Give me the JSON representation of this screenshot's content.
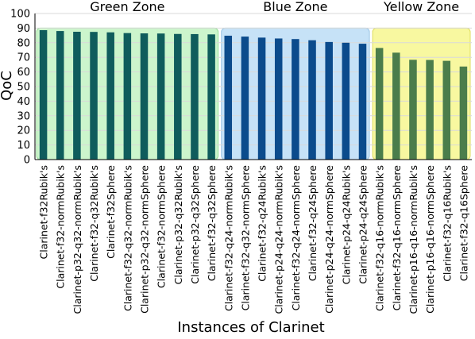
{
  "chart_data": {
    "type": "bar",
    "xlabel": "Instances of Clarinet",
    "ylabel": "QoC",
    "ylim": [
      0,
      100
    ],
    "yticks": [
      0,
      10,
      20,
      30,
      40,
      50,
      60,
      70,
      80,
      90,
      100
    ],
    "grid": true,
    "zones": [
      {
        "name": "Green Zone",
        "start": 0,
        "end": 10,
        "fill": "#ccf5cc",
        "stroke": "#99dd99"
      },
      {
        "name": "Blue Zone",
        "start": 11,
        "end": 19,
        "fill": "#c6e2f7",
        "stroke": "#9cc6e6"
      },
      {
        "name": "Yellow Zone",
        "start": 20,
        "end": 25,
        "fill": "#f8f8a0",
        "stroke": "#dede60"
      }
    ],
    "categories": [
      "Clarinet-f32Rubik's",
      "Clarinet-f32-normRubik's",
      "Clarinet-p32-q32-normRubik's",
      "Clarinet-f32-q32Rubik's",
      "Clarinet-f32Sphere",
      "Clarinet-f32-q32-normRubik's",
      "Clarinet-p32-q32-normSphere",
      "Clarinet-f32-normSphere",
      "Clarinet-p32-q32Rubik's",
      "Clarinet-p32-q32Sphere",
      "Clarinet-f32-q32Sphere",
      "Clarinet-f32-q24-normRubik's",
      "Clarinet-f32-q32-normSphere",
      "Clarinet-f32-q24Rubik's",
      "Clarinet-p24-q24-normRubik's",
      "Clarinet-f32-q24-normSphere",
      "Clarinet-f32-q24Sphere",
      "Clarinet-p24-q24-normSphere",
      "Clarinet-p24-q24Rubik's",
      "Clarinet-p24-q24Sphere",
      "Clarinet-f32-q16-normRubik's",
      "Clarinet-f32-q16-normSphere",
      "Clarinet-p16-q16-normRubik's",
      "Clarinet-p16-q16-normSphere",
      "Clarinet-f32-q16Rubik's",
      "Clarinet-f32-q16Sphere"
    ],
    "values": [
      88.6,
      88.0,
      87.5,
      87.4,
      87.1,
      86.6,
      86.4,
      86.3,
      86.0,
      85.9,
      85.7,
      84.8,
      84.2,
      83.5,
      82.9,
      82.5,
      81.7,
      80.5,
      80.0,
      79.3,
      76.4,
      73.2,
      68.3,
      68.2,
      67.6,
      63.7
    ],
    "colors": {
      "green_bar": "#0f5c5c",
      "blue_bar": "#0b4b8c",
      "yellow_bar": "#4b7d4b",
      "grid": "#d9d9d9",
      "axis": "#000000"
    }
  }
}
